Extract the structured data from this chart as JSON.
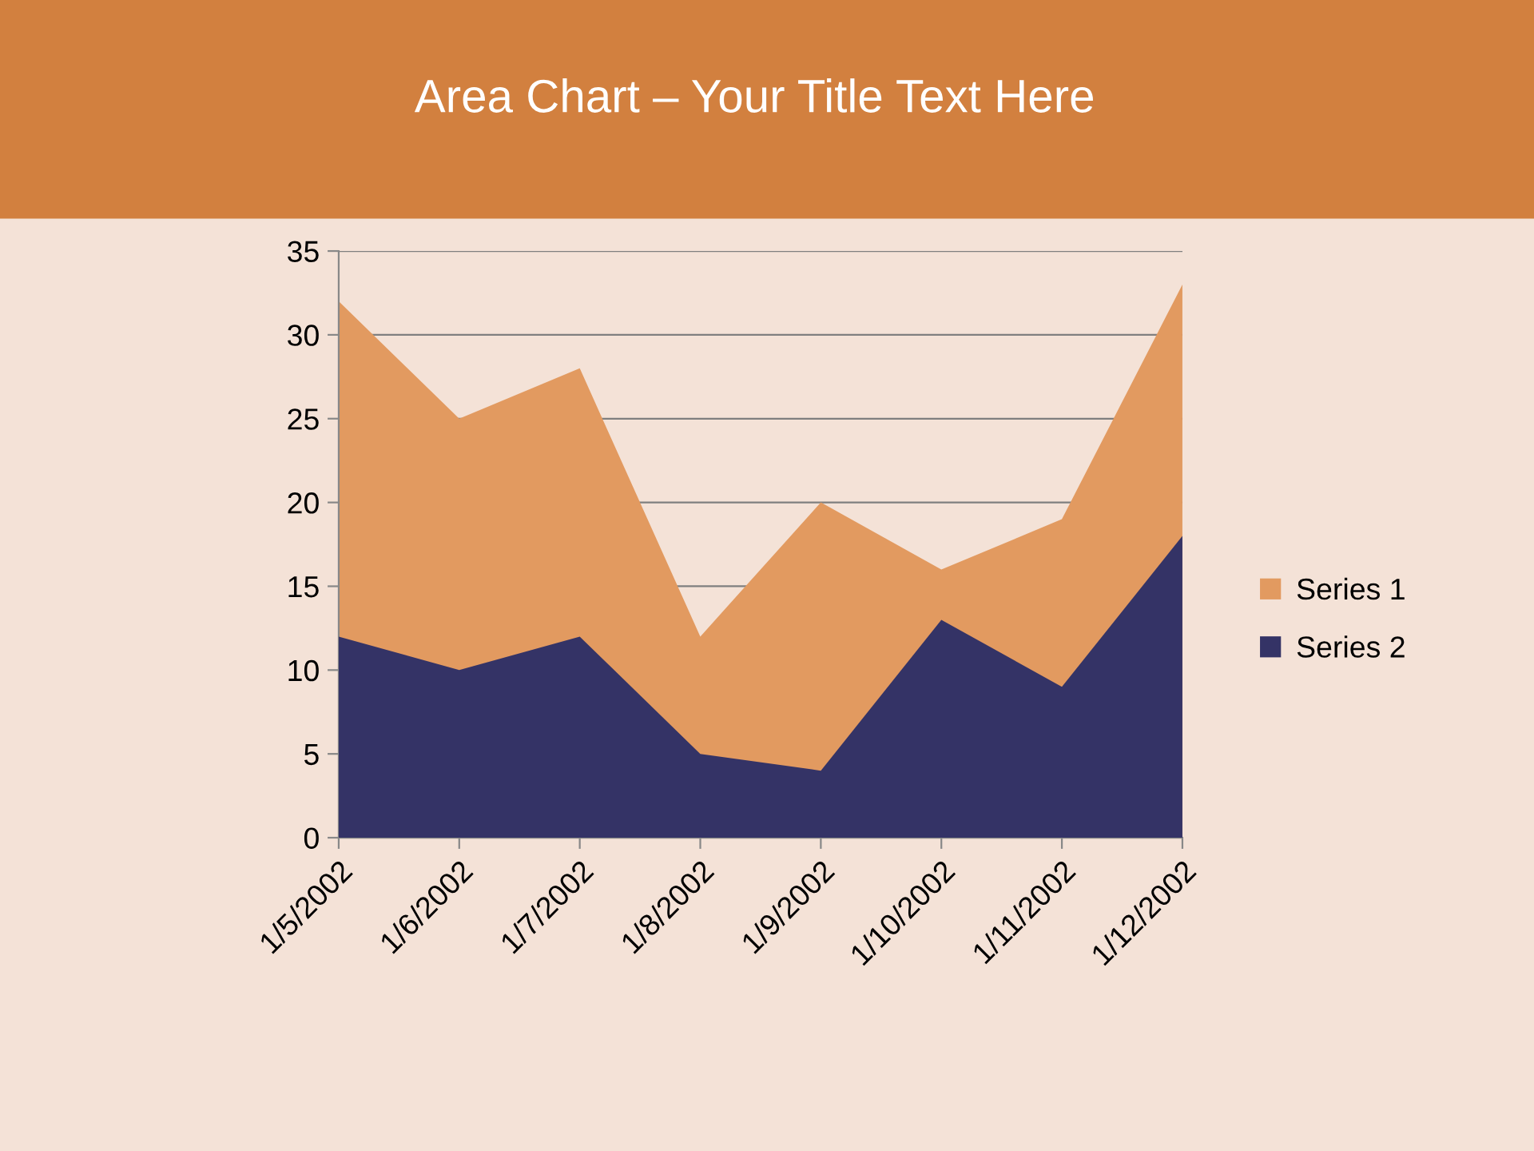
{
  "chart_data": {
    "type": "area",
    "title": "Area Chart – Your Title Text Here",
    "categories": [
      "1/5/2002",
      "1/6/2002",
      "1/7/2002",
      "1/8/2002",
      "1/9/2002",
      "1/10/2002",
      "1/11/2002",
      "1/12/2002"
    ],
    "series": [
      {
        "name": "Series 1",
        "color": "#e29a60",
        "values": [
          32,
          25,
          28,
          12,
          20,
          16,
          19,
          33
        ]
      },
      {
        "name": "Series 2",
        "color": "#343366",
        "values": [
          12,
          10,
          12,
          5,
          4,
          13,
          9,
          18
        ]
      }
    ],
    "ylim": [
      0,
      35
    ],
    "yticks": [
      0,
      5,
      10,
      15,
      20,
      25,
      30,
      35
    ],
    "grid": "y",
    "legend": "right"
  }
}
